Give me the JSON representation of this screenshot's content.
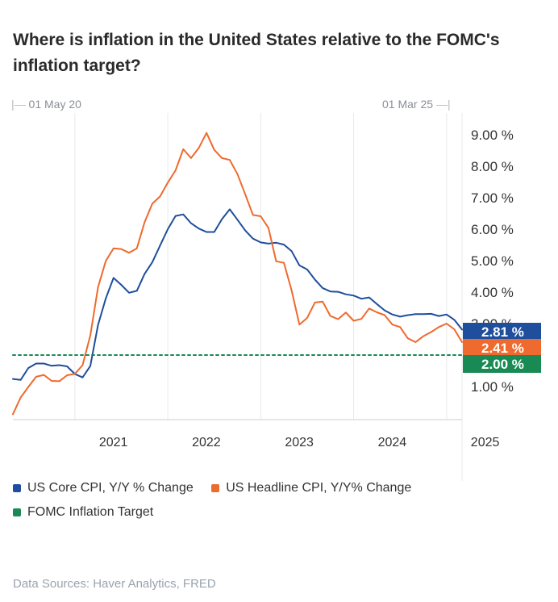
{
  "title": "Where is inflation in the United States relative to the FOMC's inflation target?",
  "range": {
    "start": "01 May 20",
    "end": "01 Mar 25"
  },
  "source": "Data Sources: Haver Analytics, FRED",
  "colors": {
    "core": "#1f4e9c",
    "headline": "#ee6a2e",
    "target": "#1a8a55",
    "axis": "#c9ced4"
  },
  "chart_data": {
    "type": "line",
    "title": "Where is inflation in the United States relative to the FOMC's inflation target?",
    "x_range": [
      "2020-05",
      "2025-03"
    ],
    "ylim": [
      0,
      9.5
    ],
    "y_ticks": [
      "9.00 %",
      "8.00 %",
      "7.00 %",
      "6.00 %",
      "5.00 %",
      "4.00 %",
      "3.00 %",
      "2.00 %",
      "1.00 %"
    ],
    "y_tick_values": [
      9,
      8,
      7,
      6,
      5,
      4,
      3,
      2,
      1
    ],
    "x_ticks": [
      "2021",
      "2022",
      "2023",
      "2024",
      "2025"
    ],
    "grid": "vertical",
    "legend_position": "bottom",
    "series": [
      {
        "name": "US Core CPI, Y/Y % Change",
        "color": "#1f4e9c",
        "x": [
          "2020-05",
          "2020-06",
          "2020-07",
          "2020-08",
          "2020-09",
          "2020-10",
          "2020-11",
          "2020-12",
          "2021-01",
          "2021-02",
          "2021-03",
          "2021-04",
          "2021-05",
          "2021-06",
          "2021-07",
          "2021-08",
          "2021-09",
          "2021-10",
          "2021-11",
          "2021-12",
          "2022-01",
          "2022-02",
          "2022-03",
          "2022-04",
          "2022-05",
          "2022-06",
          "2022-07",
          "2022-08",
          "2022-09",
          "2022-10",
          "2022-11",
          "2022-12",
          "2023-01",
          "2023-02",
          "2023-03",
          "2023-04",
          "2023-05",
          "2023-06",
          "2023-07",
          "2023-08",
          "2023-09",
          "2023-10",
          "2023-11",
          "2023-12",
          "2024-01",
          "2024-02",
          "2024-03",
          "2024-04",
          "2024-05",
          "2024-06",
          "2024-07",
          "2024-08",
          "2024-09",
          "2024-10",
          "2024-11",
          "2024-12",
          "2025-01",
          "2025-02",
          "2025-03"
        ],
        "values": [
          1.24,
          1.21,
          1.59,
          1.73,
          1.73,
          1.66,
          1.68,
          1.64,
          1.4,
          1.29,
          1.65,
          2.96,
          3.8,
          4.45,
          4.23,
          3.98,
          4.04,
          4.58,
          4.95,
          5.48,
          6.0,
          6.42,
          6.47,
          6.19,
          6.02,
          5.91,
          5.91,
          6.32,
          6.63,
          6.3,
          5.96,
          5.7,
          5.58,
          5.54,
          5.57,
          5.51,
          5.3,
          4.85,
          4.72,
          4.4,
          4.13,
          4.02,
          4.01,
          3.93,
          3.89,
          3.79,
          3.83,
          3.62,
          3.42,
          3.29,
          3.22,
          3.27,
          3.3,
          3.3,
          3.31,
          3.24,
          3.29,
          3.12,
          2.81
        ],
        "last_label": "2.81 %"
      },
      {
        "name": "US Headline CPI, Y/Y% Change",
        "color": "#ee6a2e",
        "x": [
          "2020-05",
          "2020-06",
          "2020-07",
          "2020-08",
          "2020-09",
          "2020-10",
          "2020-11",
          "2020-12",
          "2021-01",
          "2021-02",
          "2021-03",
          "2021-04",
          "2021-05",
          "2021-06",
          "2021-07",
          "2021-08",
          "2021-09",
          "2021-10",
          "2021-11",
          "2021-12",
          "2022-01",
          "2022-02",
          "2022-03",
          "2022-04",
          "2022-05",
          "2022-06",
          "2022-07",
          "2022-08",
          "2022-09",
          "2022-10",
          "2022-11",
          "2022-12",
          "2023-01",
          "2023-02",
          "2023-03",
          "2023-04",
          "2023-05",
          "2023-06",
          "2023-07",
          "2023-08",
          "2023-09",
          "2023-10",
          "2023-11",
          "2023-12",
          "2024-01",
          "2024-02",
          "2024-03",
          "2024-04",
          "2024-05",
          "2024-06",
          "2024-07",
          "2024-08",
          "2024-09",
          "2024-10",
          "2024-11",
          "2024-12",
          "2025-01",
          "2025-02",
          "2025-03"
        ],
        "values": [
          0.12,
          0.65,
          0.99,
          1.31,
          1.37,
          1.18,
          1.17,
          1.36,
          1.4,
          1.68,
          2.62,
          4.16,
          4.99,
          5.39,
          5.37,
          5.25,
          5.39,
          6.22,
          6.81,
          7.04,
          7.48,
          7.87,
          8.54,
          8.26,
          8.58,
          9.06,
          8.52,
          8.26,
          8.2,
          7.75,
          7.11,
          6.45,
          6.41,
          6.04,
          4.98,
          4.93,
          4.05,
          2.97,
          3.18,
          3.67,
          3.7,
          3.24,
          3.14,
          3.35,
          3.09,
          3.15,
          3.48,
          3.36,
          3.27,
          2.97,
          2.89,
          2.53,
          2.41,
          2.6,
          2.73,
          2.89,
          3.0,
          2.82,
          2.41
        ],
        "last_label": "2.41 %"
      },
      {
        "name": "FOMC Inflation Target",
        "color": "#1a8a55",
        "style": "dotted",
        "x": [
          "2020-05",
          "2025-03"
        ],
        "values": [
          2.0,
          2.0
        ],
        "last_label": "2.00 %"
      }
    ]
  }
}
